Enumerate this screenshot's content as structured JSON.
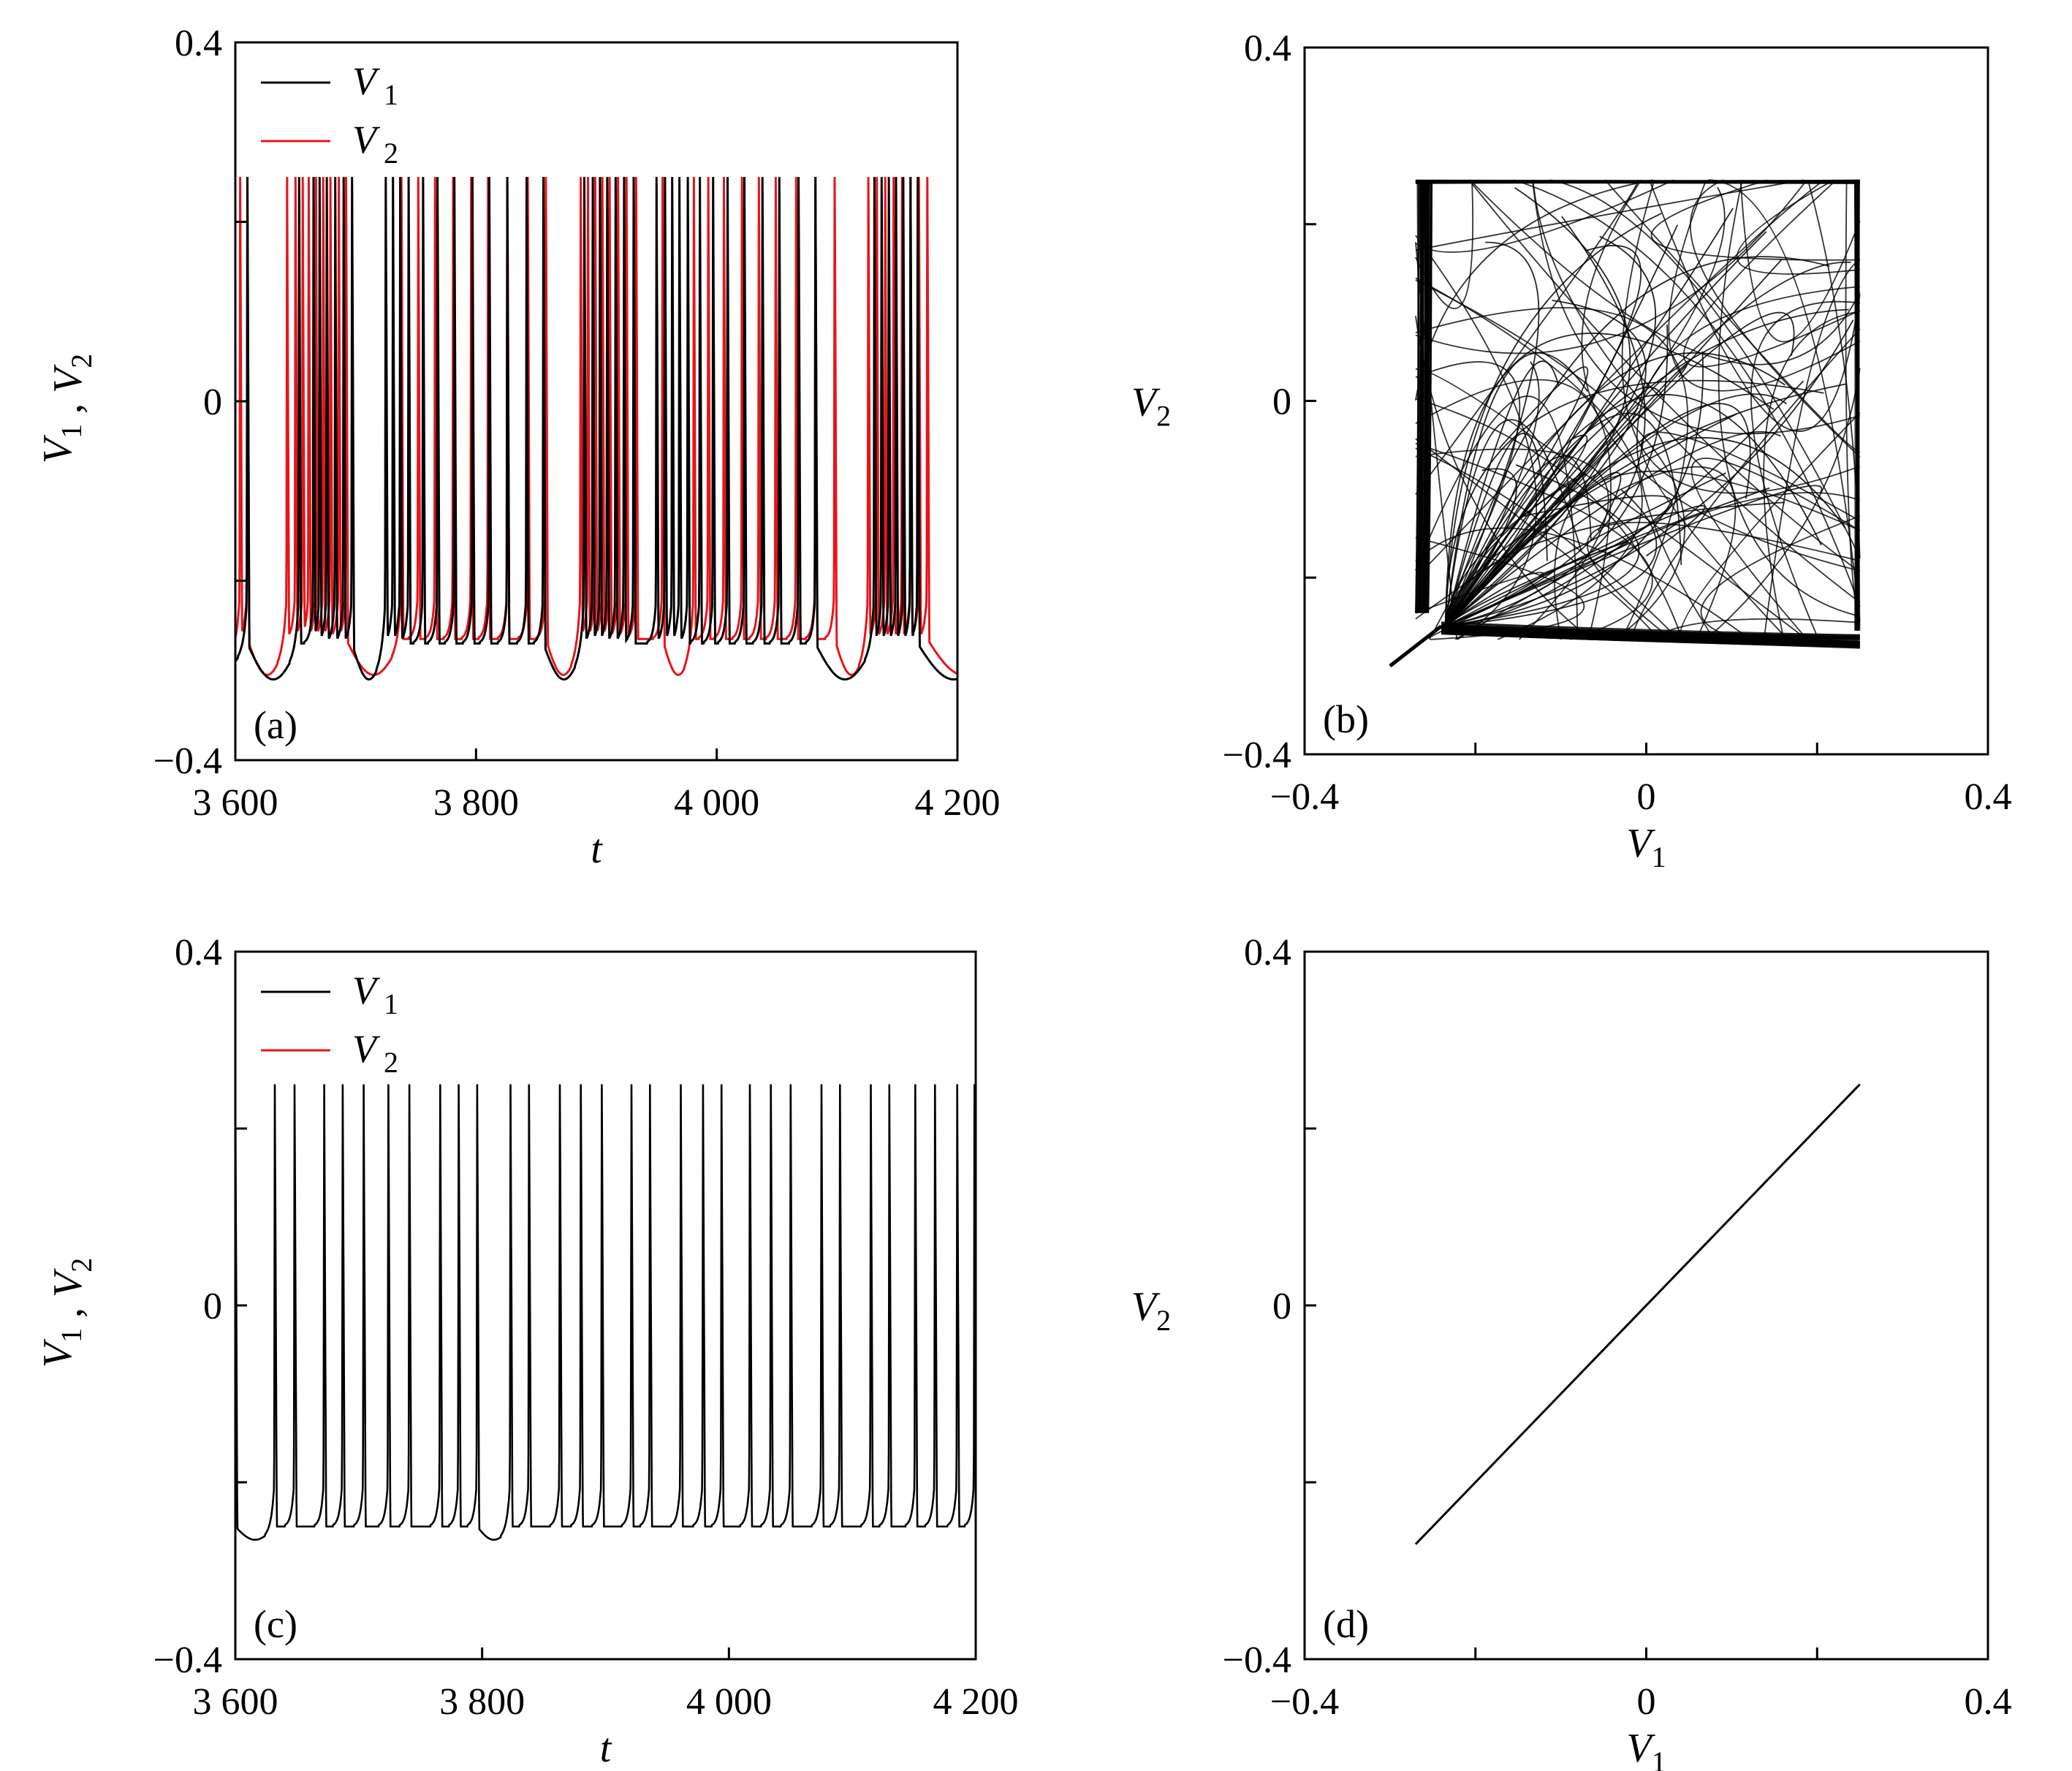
{
  "figure": {
    "background": "#ffffff",
    "colors": {
      "V1": "#000000",
      "V2": "#e8141a"
    }
  },
  "chart_data": [
    {
      "id": "a",
      "type": "line",
      "panel_label": "(a)",
      "xlabel": "t",
      "ylabel": "V1 , V2",
      "xlim": [
        3600,
        4200
      ],
      "ylim": [
        -0.4,
        0.4
      ],
      "xticks": [
        {
          "value": 3600,
          "label": "3 600"
        },
        {
          "value": 3800,
          "label": "3 800"
        },
        {
          "value": 4000,
          "label": "4 000"
        },
        {
          "value": 4200,
          "label": "4 200"
        }
      ],
      "yticks": [
        {
          "value": 0.4,
          "label": "0.4"
        },
        {
          "value": 0,
          "label": "0"
        },
        {
          "value": -0.4,
          "label": "−0.4"
        }
      ],
      "minor_yticks": [
        0.2,
        -0.2
      ],
      "legend": {
        "position": "top-left",
        "entries": [
          {
            "name": "V",
            "sub": "1",
            "color": "#000000"
          },
          {
            "name": "V",
            "sub": "2",
            "color": "#e8141a"
          }
        ]
      },
      "dynamics": "unsynchronized bursting",
      "rest_level": -0.27,
      "spike_peak": 0.25,
      "series": [
        {
          "name": "V1",
          "color": "#000000",
          "spike_times": [
            3610,
            3653,
            3665,
            3670,
            3676,
            3683,
            3690,
            3697,
            3725,
            3731,
            3737,
            3744,
            3756,
            3768,
            3782,
            3797,
            3811,
            3826,
            3842,
            3856,
            3890,
            3897,
            3903,
            3909,
            3916,
            3923,
            3931,
            3950,
            3957,
            3963,
            3969,
            3976,
            3986,
            3997,
            4009,
            4023,
            4038,
            4052,
            4068,
            4082,
            4131,
            4137,
            4143,
            4149,
            4155,
            4161,
            4167
          ]
        },
        {
          "name": "V2",
          "color": "#e8141a",
          "spike_times": [
            3604,
            3610,
            3643,
            3650,
            3656,
            3661,
            3667,
            3673,
            3679,
            3686,
            3692,
            3738,
            3752,
            3766,
            3781,
            3796,
            3810,
            3826,
            3843,
            3858,
            3887,
            3893,
            3899,
            3905,
            3911,
            3918,
            3925,
            3933,
            3955,
            3981,
            3993,
            4006,
            4021,
            4035,
            4049,
            4066,
            4082,
            4098,
            4126,
            4133,
            4140,
            4147,
            4154,
            4161,
            4168,
            4175
          ]
        }
      ]
    },
    {
      "id": "b",
      "type": "line",
      "panel_label": "(b)",
      "xlabel": "V1",
      "ylabel": "V2",
      "xlim": [
        -0.4,
        0.4
      ],
      "ylim": [
        -0.4,
        0.4
      ],
      "xticks": [
        {
          "value": -0.4,
          "label": "−0.4"
        },
        {
          "value": 0,
          "label": "0"
        },
        {
          "value": 0.4,
          "label": "0.4"
        }
      ],
      "yticks": [
        {
          "value": 0.4,
          "label": "0.4"
        },
        {
          "value": 0,
          "label": "0"
        },
        {
          "value": -0.4,
          "label": "−0.4"
        }
      ],
      "minor_xticks": [
        -0.2,
        0.2
      ],
      "minor_yticks": [
        0.2,
        -0.2
      ],
      "dynamics": "phase portrait V2 vs V1 filling square region",
      "trajectory_region": {
        "x": [
          -0.3,
          0.25
        ],
        "y": [
          -0.3,
          0.25
        ]
      }
    },
    {
      "id": "c",
      "type": "line",
      "panel_label": "(c)",
      "xlabel": "t",
      "ylabel": "V1 , V2",
      "xlim": [
        3600,
        4200
      ],
      "ylim": [
        -0.4,
        0.4
      ],
      "xticks": [
        {
          "value": 3600,
          "label": "3 600"
        },
        {
          "value": 3800,
          "label": "3 800"
        },
        {
          "value": 4000,
          "label": "4 000"
        },
        {
          "value": 4200,
          "label": "4 200"
        }
      ],
      "yticks": [
        {
          "value": 0.4,
          "label": "0.4"
        },
        {
          "value": 0,
          "label": "0"
        },
        {
          "value": -0.4,
          "label": "−0.4"
        }
      ],
      "minor_yticks": [
        0.2,
        -0.2
      ],
      "legend": {
        "position": "top-left",
        "entries": [
          {
            "name": "V",
            "sub": "1",
            "color": "#000000"
          },
          {
            "name": "V",
            "sub": "2",
            "color": "#e8141a"
          }
        ]
      },
      "dynamics": "synchronized spiking (V1 = V2)",
      "rest_level": -0.25,
      "spike_peak": 0.25,
      "series": [
        {
          "name": "V1",
          "color": "#000000",
          "spike_times": [
            3600,
            3632,
            3648,
            3672,
            3687,
            3704,
            3724,
            3741,
            3766,
            3781,
            3796,
            3823,
            3838,
            3863,
            3880,
            3897,
            3921,
            3936,
            3961,
            3979,
            3994,
            4017,
            4034,
            4050,
            4075,
            4090,
            4115,
            4130,
            4151,
            4167,
            4185,
            4199
          ]
        },
        {
          "name": "V2",
          "color": "#e8141a",
          "spike_times": [
            3600,
            3632,
            3648,
            3672,
            3687,
            3704,
            3724,
            3741,
            3766,
            3781,
            3796,
            3823,
            3838,
            3863,
            3880,
            3897,
            3921,
            3936,
            3961,
            3979,
            3994,
            4017,
            4034,
            4050,
            4075,
            4090,
            4115,
            4130,
            4151,
            4167,
            4185,
            4199
          ]
        }
      ]
    },
    {
      "id": "d",
      "type": "line",
      "panel_label": "(d)",
      "xlabel": "V1",
      "ylabel": "V2",
      "xlim": [
        -0.4,
        0.4
      ],
      "ylim": [
        -0.4,
        0.4
      ],
      "xticks": [
        {
          "value": -0.4,
          "label": "−0.4"
        },
        {
          "value": 0,
          "label": "0"
        },
        {
          "value": 0.4,
          "label": "0.4"
        }
      ],
      "yticks": [
        {
          "value": 0.4,
          "label": "0.4"
        },
        {
          "value": 0,
          "label": "0"
        },
        {
          "value": -0.4,
          "label": "−0.4"
        }
      ],
      "minor_xticks": [
        -0.2,
        0.2
      ],
      "minor_yticks": [
        0.2,
        -0.2
      ],
      "dynamics": "diagonal line V2 = V1",
      "series": [
        {
          "name": "V2 vs V1",
          "color": "#000000",
          "x": [
            -0.27,
            0.25
          ],
          "y": [
            -0.27,
            0.25
          ]
        }
      ]
    }
  ]
}
